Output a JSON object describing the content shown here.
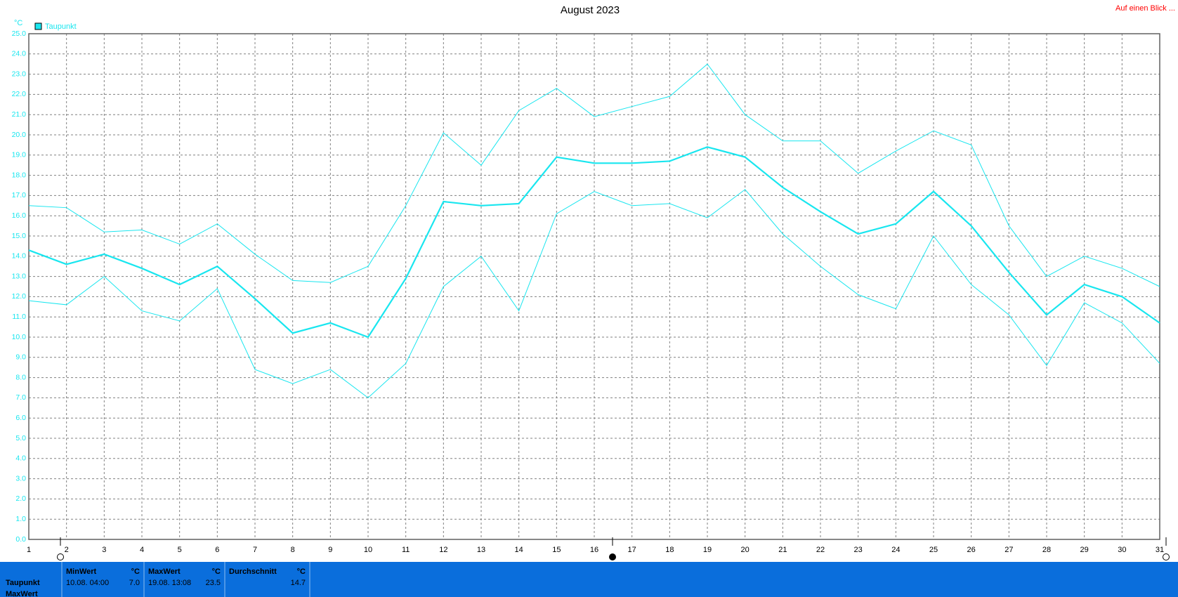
{
  "chart_data": {
    "type": "line",
    "title": "August 2023",
    "y_unit": "°C",
    "grid": true,
    "legend": "top-left",
    "x": [
      1,
      2,
      3,
      4,
      5,
      6,
      7,
      8,
      9,
      10,
      11,
      12,
      13,
      14,
      15,
      16,
      17,
      18,
      19,
      20,
      21,
      22,
      23,
      24,
      25,
      26,
      27,
      28,
      29,
      30,
      31
    ],
    "xlim": [
      1,
      31
    ],
    "xticks": [
      1,
      2,
      3,
      4,
      5,
      6,
      7,
      8,
      9,
      10,
      11,
      12,
      13,
      14,
      15,
      16,
      17,
      18,
      19,
      20,
      21,
      22,
      23,
      24,
      25,
      26,
      27,
      28,
      29,
      30,
      31
    ],
    "ylim": [
      0,
      25
    ],
    "yticks": [
      {
        "value": 0,
        "label": "0.0"
      },
      {
        "value": 1,
        "label": "1.0"
      },
      {
        "value": 2,
        "label": "2.0"
      },
      {
        "value": 3,
        "label": "3.0"
      },
      {
        "value": 4,
        "label": "4.0"
      },
      {
        "value": 5,
        "label": "5.0"
      },
      {
        "value": 6,
        "label": "6.0"
      },
      {
        "value": 7,
        "label": "7.0"
      },
      {
        "value": 8,
        "label": "8.0"
      },
      {
        "value": 9,
        "label": "9.0"
      },
      {
        "value": 10,
        "label": "10.0"
      },
      {
        "value": 11,
        "label": "11.0"
      },
      {
        "value": 12,
        "label": "12.0"
      },
      {
        "value": 13,
        "label": "13.0"
      },
      {
        "value": 14,
        "label": "14.0"
      },
      {
        "value": 15,
        "label": "15.0"
      },
      {
        "value": 16,
        "label": "16.0"
      },
      {
        "value": 17,
        "label": "17.0"
      },
      {
        "value": 18,
        "label": "18.0"
      },
      {
        "value": 19,
        "label": "19.0"
      },
      {
        "value": 20,
        "label": "20.0"
      },
      {
        "value": 21,
        "label": "21.0"
      },
      {
        "value": 22,
        "label": "22.0"
      },
      {
        "value": 23,
        "label": "23.0"
      },
      {
        "value": 24,
        "label": "24.0"
      },
      {
        "value": 25,
        "label": "25.0"
      }
    ],
    "series": [
      {
        "name": "Taupunkt",
        "color": "#19e6ef",
        "width": 2.2,
        "values": [
          14.3,
          13.6,
          14.1,
          13.4,
          12.6,
          13.5,
          11.9,
          10.2,
          10.7,
          10.0,
          12.9,
          16.7,
          16.5,
          16.6,
          18.9,
          18.6,
          18.6,
          18.7,
          19.4,
          18.9,
          17.4,
          16.2,
          15.1,
          15.6,
          17.2,
          15.5,
          13.2,
          11.1,
          12.6,
          12.0,
          10.7
        ]
      },
      {
        "color": "#19e6ef",
        "width": 1,
        "values": [
          16.5,
          16.4,
          15.2,
          15.3,
          14.6,
          15.6,
          14.1,
          12.8,
          12.7,
          13.5,
          16.5,
          20.1,
          18.5,
          21.2,
          22.3,
          20.9,
          21.4,
          21.9,
          23.5,
          21.0,
          19.7,
          19.7,
          18.1,
          19.2,
          20.2,
          19.5,
          15.5,
          13.0,
          14.0,
          13.4,
          12.5
        ]
      },
      {
        "color": "#19e6ef",
        "width": 1,
        "values": [
          11.8,
          11.6,
          13.0,
          11.3,
          10.8,
          12.4,
          8.4,
          7.7,
          8.4,
          7.0,
          8.7,
          12.5,
          14.0,
          11.3,
          16.1,
          17.2,
          16.5,
          16.6,
          15.9,
          17.3,
          15.1,
          13.5,
          12.1,
          11.4,
          15.0,
          12.6,
          11.1,
          8.6,
          11.7,
          10.7,
          8.7
        ]
      }
    ]
  },
  "link": "Auf einen Blick ...",
  "stats": {
    "columns": [
      {
        "label": "MinWert",
        "unit": "°C"
      },
      {
        "label": "MaxWert",
        "unit": "°C"
      },
      {
        "label": "Durchschnitt",
        "unit": "°C"
      }
    ],
    "rows": [
      {
        "label": "Taupunkt",
        "cells": [
          {
            "time": "10.08. 04:00",
            "value": "7.0"
          },
          {
            "time": "19.08. 13:08",
            "value": "23.5"
          },
          {
            "value": "14.7"
          }
        ]
      },
      {
        "label": "MaxWert"
      }
    ]
  }
}
